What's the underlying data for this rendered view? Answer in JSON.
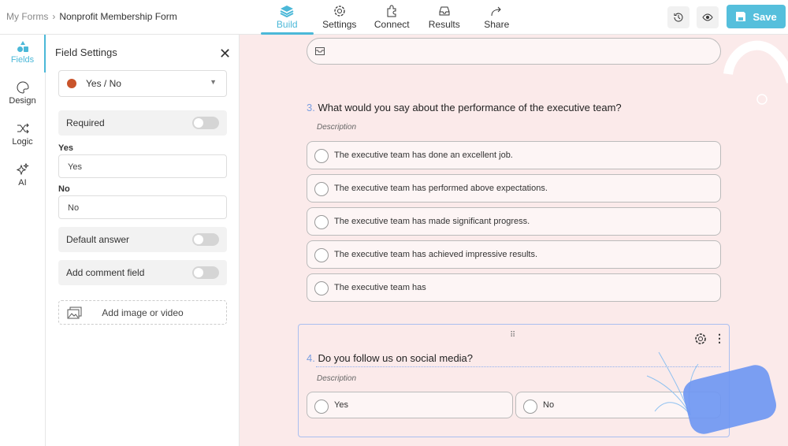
{
  "breadcrumb": {
    "parent": "My Forms",
    "current": "Nonprofit Membership Form"
  },
  "tabs": [
    {
      "label": "Build",
      "icon": "layers-icon"
    },
    {
      "label": "Settings",
      "icon": "gear-icon"
    },
    {
      "label": "Connect",
      "icon": "puzzle-icon"
    },
    {
      "label": "Results",
      "icon": "inbox-icon"
    },
    {
      "label": "Share",
      "icon": "share-arrow-icon"
    }
  ],
  "header": {
    "save_label": "Save"
  },
  "nav": [
    {
      "label": "Fields"
    },
    {
      "label": "Design"
    },
    {
      "label": "Logic"
    },
    {
      "label": "AI"
    }
  ],
  "panel": {
    "title": "Field Settings",
    "field_type": "Yes / No",
    "required_label": "Required",
    "yes_label": "Yes",
    "yes_value": "Yes",
    "no_label": "No",
    "no_value": "No",
    "default_label": "Default answer",
    "comment_label": "Add comment field",
    "add_media": "Add image or video"
  },
  "form": {
    "q3": {
      "num": "3.",
      "title": "What would you say about the performance of the executive team?",
      "description": "Description",
      "options": [
        "The executive team has done an excellent job.",
        "The executive team has performed above expectations.",
        "The executive team has made significant progress.",
        "The executive team has achieved impressive results.",
        "The executive team has"
      ]
    },
    "q4": {
      "num": "4.",
      "title": "Do you follow us on social media?",
      "description": "Description",
      "options": [
        "Yes",
        "No"
      ]
    }
  },
  "colors": {
    "accent": "#55bfdc",
    "canvas": "#fbeaea",
    "question_number": "#7a9ee0"
  }
}
